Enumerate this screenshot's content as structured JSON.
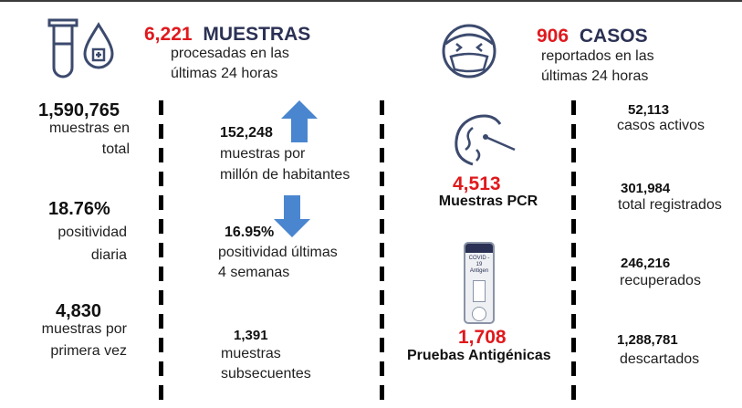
{
  "header": {
    "muestras_count": "6,221",
    "muestras_title": "MUESTRAS",
    "muestras_sub1": "procesadas en las",
    "muestras_sub2": "últimas 24 horas",
    "casos_count": "906",
    "casos_title": "CASOS",
    "casos_sub1": "reportados en las",
    "casos_sub2": "últimas 24 horas"
  },
  "left": {
    "total_value": "1,590,765",
    "total_label1": "muestras en",
    "total_label2": "total",
    "positividad_value": "18.76%",
    "positividad_label1": "positividad",
    "positividad_label2": "diaria",
    "primera_value": "4,830",
    "primera_label1": "muestras por",
    "primera_label2": "primera vez"
  },
  "middle": {
    "millon_value": "152,248",
    "millon_label1": "muestras por",
    "millon_label2": "millón de habitantes",
    "semanas_value": "16.95%",
    "semanas_label1": "positividad últimas",
    "semanas_label2": "4 semanas",
    "subsecuentes_value": "1,391",
    "subsecuentes_label1": "muestras",
    "subsecuentes_label2": "subsecuentes"
  },
  "tests": {
    "pcr_value": "4,513",
    "pcr_label": "Muestras PCR",
    "antigen_value": "1,708",
    "antigen_label": "Pruebas Antigénicas",
    "cassette_text1": "COVID - 19",
    "cassette_text2": "Antigen"
  },
  "casos": {
    "activos_value": "52,113",
    "activos_label": "casos activos",
    "registrados_value": "301,984",
    "registrados_label": "total registrados",
    "recuperados_value": "246,216",
    "recuperados_label": "recuperados",
    "descartados_value": "1,288,781",
    "descartados_label": "descartados"
  },
  "colors": {
    "accent_red": "#e0191d",
    "title_navy": "#2b3154",
    "arrow_blue": "#4a86cf",
    "icon_navy": "#3c4a6e"
  },
  "icons": {
    "test_tube": "test-tube-icon",
    "drop": "blood-drop-icon",
    "sick_face": "sick-face-icon",
    "swab": "nasal-swab-icon",
    "antigen": "antigen-test-icon",
    "arrow_up": "arrow-up-icon",
    "arrow_down": "arrow-down-icon"
  }
}
